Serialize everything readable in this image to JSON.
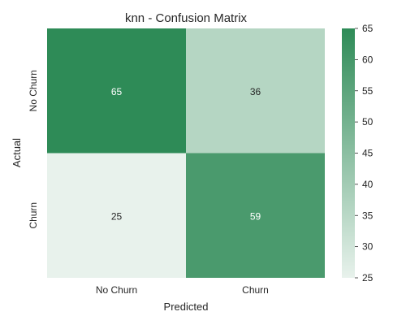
{
  "chart_data": {
    "type": "heatmap",
    "title": "knn - Confusion Matrix",
    "xlabel": "Predicted",
    "ylabel": "Actual",
    "x_categories": [
      "No Churn",
      "Churn"
    ],
    "y_categories": [
      "No Churn",
      "Churn"
    ],
    "values": [
      [
        65,
        36
      ],
      [
        25,
        59
      ]
    ],
    "colorbar": {
      "min": 25,
      "max": 65,
      "ticks": [
        25,
        30,
        35,
        40,
        45,
        50,
        55,
        60,
        65
      ]
    },
    "colors": {
      "low": "#e8f2ec",
      "high": "#2e8b57",
      "text_on_dark": "#ffffff",
      "text_on_light": "#262626"
    }
  }
}
